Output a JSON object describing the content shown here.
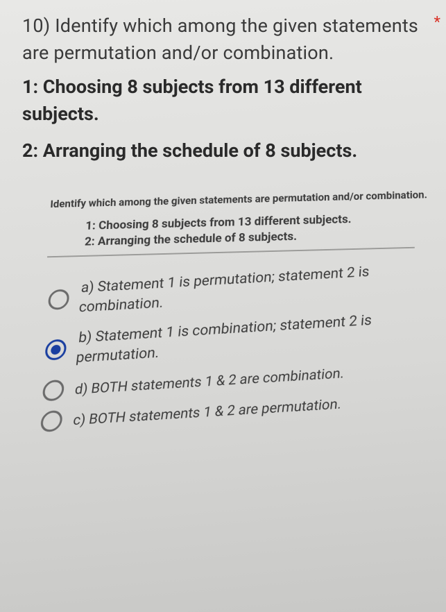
{
  "question": {
    "stem": "10) Identify which among the given statements are permutation and/or combination.",
    "statement1": "1: Choosing 8 subjects from 13 different subjects.",
    "statement2": "2: Arranging the schedule of 8 subjects.",
    "required_mark": "*"
  },
  "inner": {
    "title": "Identify which among the given statements are permutation and/or combination.",
    "line1": "1: Choosing 8 subjects from 13 different subjects.",
    "line2": "2: Arranging the schedule of 8 subjects."
  },
  "options": {
    "a": "a) Statement 1 is permutation; statement 2 is combination.",
    "b": "b) Statement 1 is combination; statement 2 is permutation.",
    "d": "d) BOTH statements 1 & 2 are combination.",
    "c": "c) BOTH statements 1 & 2 are permutation."
  },
  "selected": "b",
  "colors": {
    "text": "#2a2a2a",
    "accent": "#1a3fa0",
    "required": "#d93025",
    "radio_border": "#6b6b6b",
    "rule": "#9a9a98"
  }
}
